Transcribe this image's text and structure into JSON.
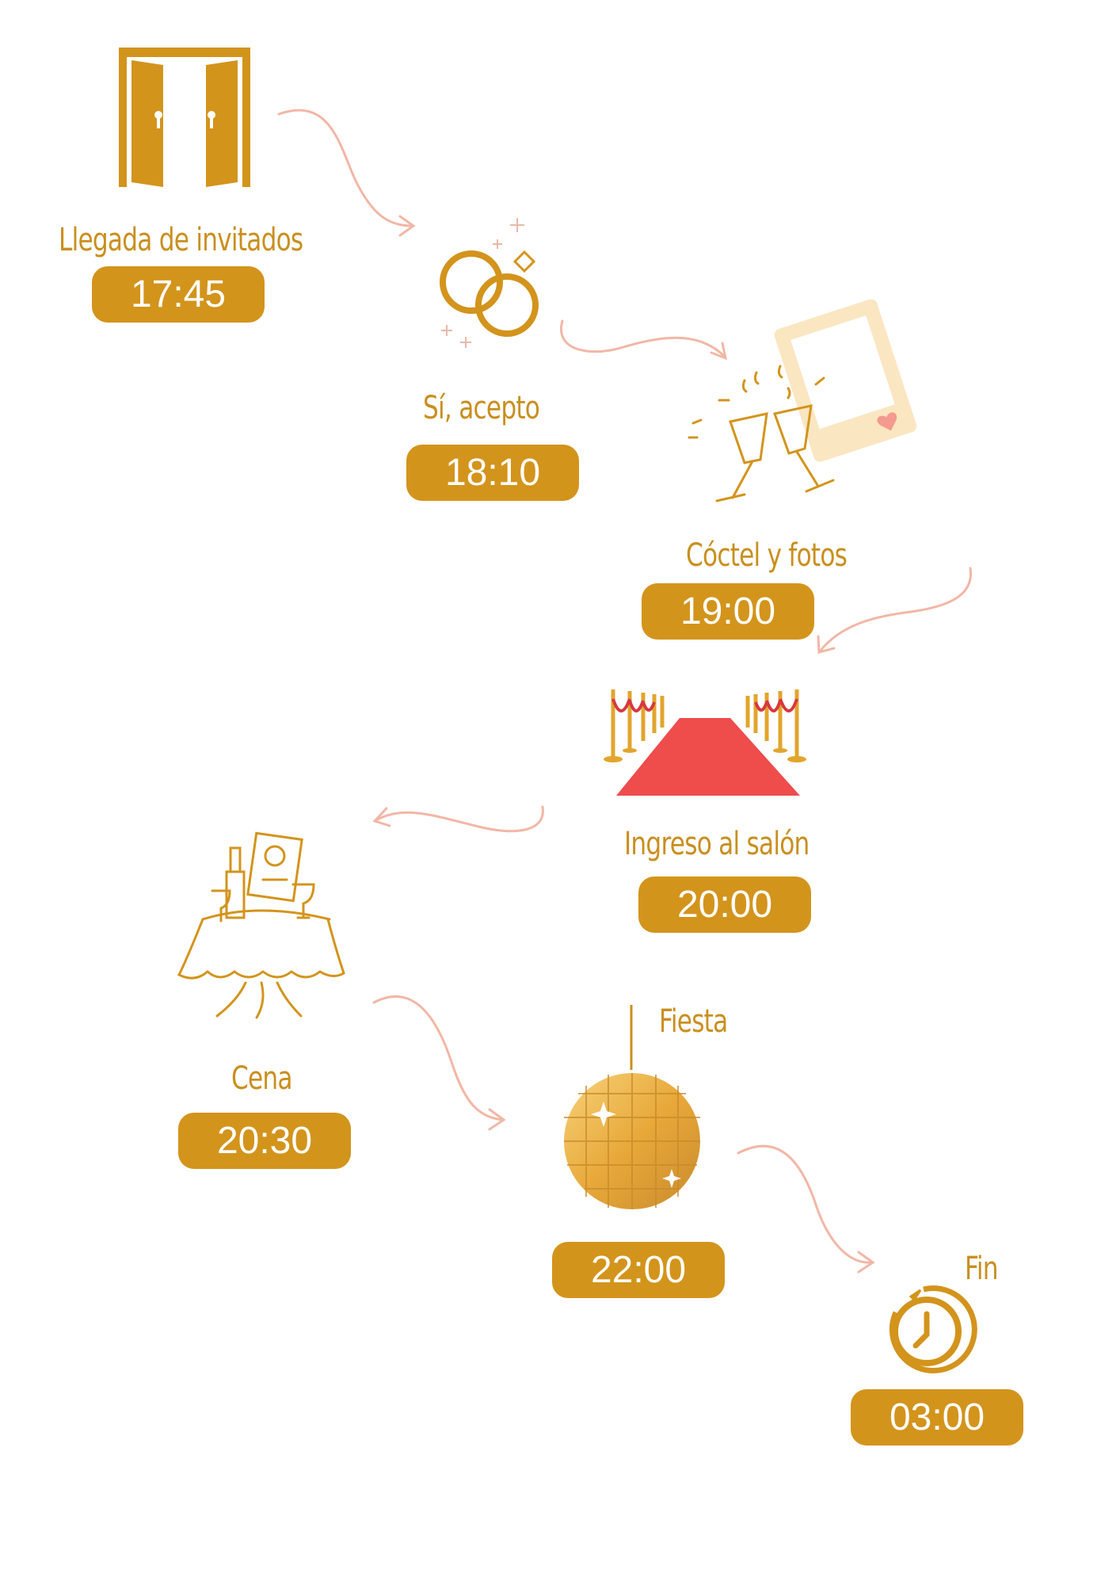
{
  "colors": {
    "gold": "#D3941C",
    "label_gold": "#C98F1E",
    "arrow_pink": "#F2B7A6",
    "carpet_red": "#EF4C4C",
    "frame_cream": "#FBE6C2",
    "heart_pink": "#F49A8E"
  },
  "events": [
    {
      "label": "Llegada de invitados",
      "time": "17:45",
      "icon": "door-icon"
    },
    {
      "label": "Sí, acepto",
      "time": "18:10",
      "icon": "rings-icon"
    },
    {
      "label": "Cóctel y fotos",
      "time": "19:00",
      "icon": "toast-photo-icon"
    },
    {
      "label": "Ingreso al salón",
      "time": "20:00",
      "icon": "red-carpet-icon"
    },
    {
      "label": "Cena",
      "time": "20:30",
      "icon": "dinner-table-icon"
    },
    {
      "label": "Fiesta",
      "time": "22:00",
      "icon": "disco-ball-icon"
    },
    {
      "label": "Fin",
      "time": "03:00",
      "icon": "clock-icon"
    }
  ]
}
